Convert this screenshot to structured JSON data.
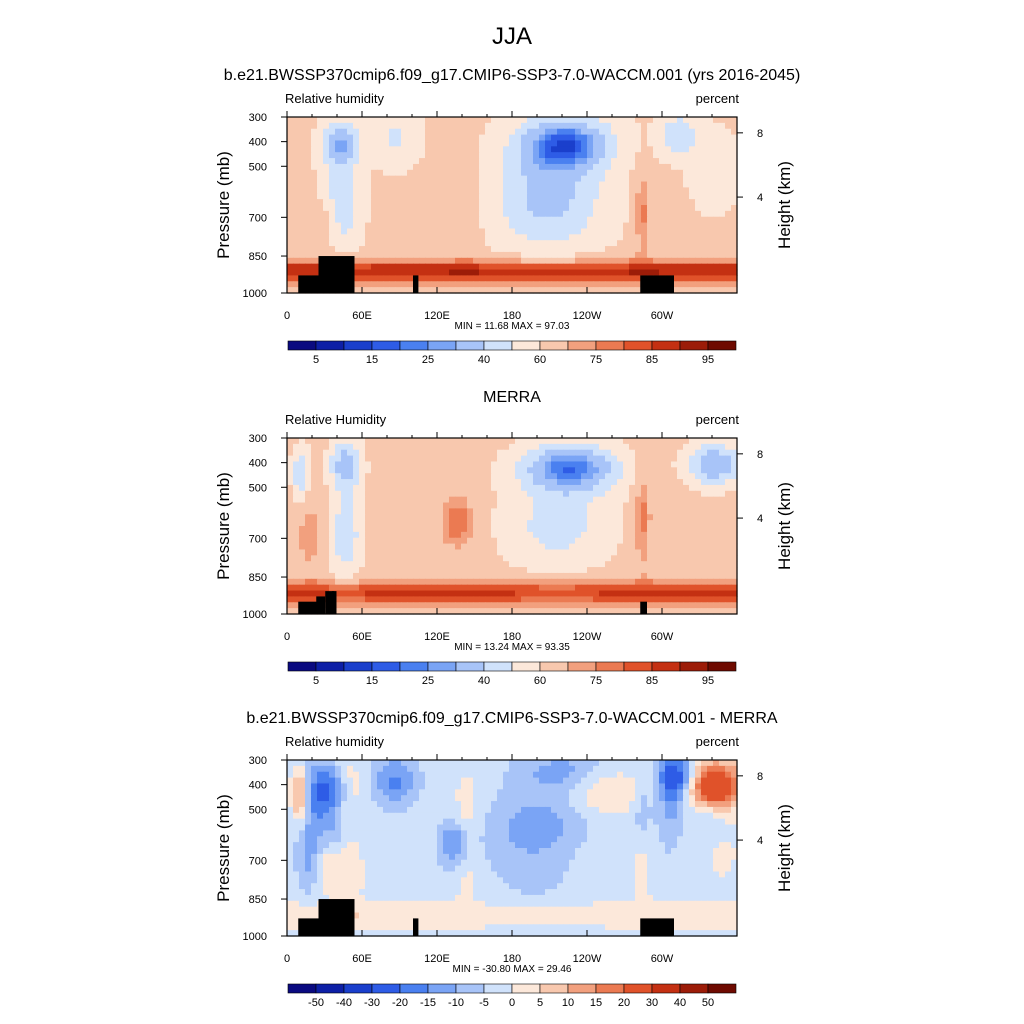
{
  "figure": {
    "title": "JJA"
  },
  "colors": {
    "abs_palette": [
      "#0a0a80",
      "#0d1fa6",
      "#1a3fcc",
      "#2e5ce6",
      "#4a80f0",
      "#7aa4f5",
      "#a8c4f8",
      "#d0e2fb",
      "#fce8da",
      "#f8c8ae",
      "#f2a07e",
      "#eb7a52",
      "#e0522a",
      "#c43012",
      "#9c1c08",
      "#6e0a00"
    ],
    "diff_palette": [
      "#0a0a80",
      "#0d1fa6",
      "#1a3fcc",
      "#2e5ce6",
      "#4a80f0",
      "#7aa4f5",
      "#a8c4f8",
      "#d0e2fb",
      "#fce8da",
      "#f8c8ae",
      "#f2a07e",
      "#eb7a52",
      "#e0522a",
      "#c43012",
      "#9c1c08",
      "#6e0a00"
    ],
    "topography": "#000000"
  },
  "chart_data": [
    {
      "type": "heatmap",
      "title": "b.e21.BWSSP370cmip6.f09_g17.CMIP6-SSP3-7.0-WACCM.001 (yrs 2016-2045)",
      "left_label": "Relative humidity",
      "right_label": "percent",
      "ylabel": "Pressure (mb)",
      "y2label": "Height (km)",
      "x_ticks": [
        "0",
        "60E",
        "120E",
        "180",
        "120W",
        "60W"
      ],
      "y_ticks": [
        "300",
        "400",
        "500",
        "700",
        "850",
        "1000"
      ],
      "y2_ticks": [
        "8",
        "4"
      ],
      "min_max": "MIN = 11.68  MAX = 97.03",
      "min": 11.68,
      "max": 97.03,
      "colorbar_labels": [
        "5",
        "15",
        "25",
        "40",
        "60",
        "75",
        "85",
        "95"
      ],
      "field": "model"
    },
    {
      "type": "heatmap",
      "title": "MERRA",
      "left_label": "Relative Humidity",
      "right_label": "percent",
      "ylabel": "Pressure (mb)",
      "y2label": "Height (km)",
      "x_ticks": [
        "0",
        "60E",
        "120E",
        "180",
        "120W",
        "60W"
      ],
      "y_ticks": [
        "300",
        "400",
        "500",
        "700",
        "850",
        "1000"
      ],
      "y2_ticks": [
        "8",
        "4"
      ],
      "min_max": "MIN = 13.24  MAX = 93.35",
      "min": 13.24,
      "max": 93.35,
      "colorbar_labels": [
        "5",
        "15",
        "25",
        "40",
        "60",
        "75",
        "85",
        "95"
      ],
      "field": "obs"
    },
    {
      "type": "heatmap",
      "title": "b.e21.BWSSP370cmip6.f09_g17.CMIP6-SSP3-7.0-WACCM.001 - MERRA",
      "left_label": "Relative humidity",
      "right_label": "percent",
      "ylabel": "Pressure (mb)",
      "y2label": "Height (km)",
      "x_ticks": [
        "0",
        "60E",
        "120E",
        "180",
        "120W",
        "60W"
      ],
      "y_ticks": [
        "300",
        "400",
        "500",
        "700",
        "850",
        "1000"
      ],
      "y2_ticks": [
        "8",
        "4"
      ],
      "min_max": "MIN = -30.80  MAX = 29.46",
      "min": -30.8,
      "max": 29.46,
      "colorbar_labels": [
        "-50",
        "-40",
        "-30",
        "-20",
        "-15",
        "-10",
        "-5",
        "0",
        "5",
        "10",
        "15",
        "20",
        "30",
        "40",
        "50"
      ],
      "field": "diff"
    }
  ]
}
